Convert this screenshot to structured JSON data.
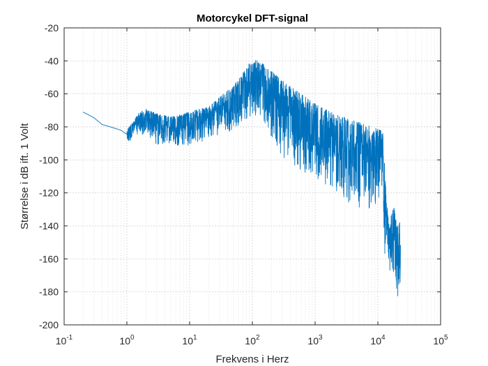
{
  "chart_data": {
    "type": "line",
    "title": "Motorcykel DFT-signal",
    "xlabel": "Frekvens i Herz",
    "ylabel": "Størrelse i dB ift. 1 Volt",
    "xscale": "log",
    "xlim": [
      0.1,
      100000
    ],
    "ylim": [
      -200,
      -20
    ],
    "grid": "major and minor (x), major (y)",
    "line_color": "#0072BD",
    "x_tick_labels": [
      {
        "base": "10",
        "exp": "-1"
      },
      {
        "base": "10",
        "exp": "0"
      },
      {
        "base": "10",
        "exp": "1"
      },
      {
        "base": "10",
        "exp": "2"
      },
      {
        "base": "10",
        "exp": "3"
      },
      {
        "base": "10",
        "exp": "4"
      },
      {
        "base": "10",
        "exp": "5"
      }
    ],
    "y_ticks": [
      "-20",
      "-40",
      "-60",
      "-80",
      "-100",
      "-120",
      "-140",
      "-160",
      "-180",
      "-200"
    ],
    "series": [
      {
        "envelope_upper": [
          [
            0.2,
            -70.5
          ],
          [
            0.3,
            -74
          ],
          [
            0.4,
            -78
          ],
          [
            0.6,
            -80
          ],
          [
            0.8,
            -81
          ],
          [
            1.0,
            -82
          ],
          [
            1.2,
            -78
          ],
          [
            1.5,
            -72
          ],
          [
            2,
            -69
          ],
          [
            3,
            -72
          ],
          [
            5,
            -74
          ],
          [
            8,
            -72
          ],
          [
            12,
            -70
          ],
          [
            20,
            -68
          ],
          [
            30,
            -62
          ],
          [
            50,
            -55
          ],
          [
            70,
            -48
          ],
          [
            100,
            -38
          ],
          [
            150,
            -42
          ],
          [
            200,
            -46
          ],
          [
            300,
            -52
          ],
          [
            500,
            -58
          ],
          [
            1000,
            -66
          ],
          [
            2000,
            -72
          ],
          [
            4000,
            -76
          ],
          [
            8000,
            -80
          ],
          [
            11000,
            -82
          ],
          [
            12000,
            -84
          ],
          [
            14000,
            -128
          ],
          [
            17000,
            -132
          ],
          [
            18000,
            -128
          ],
          [
            20000,
            -138
          ],
          [
            23000,
            -138
          ]
        ],
        "envelope_lower": [
          [
            0.2,
            -71.5
          ],
          [
            0.3,
            -75
          ],
          [
            0.4,
            -79
          ],
          [
            0.6,
            -81
          ],
          [
            0.8,
            -83
          ],
          [
            1.0,
            -87
          ],
          [
            1.15,
            -90
          ],
          [
            1.3,
            -84
          ],
          [
            1.5,
            -86
          ],
          [
            2,
            -84
          ],
          [
            3,
            -91
          ],
          [
            5,
            -90
          ],
          [
            8,
            -92
          ],
          [
            12,
            -90
          ],
          [
            20,
            -88
          ],
          [
            30,
            -86
          ],
          [
            50,
            -84
          ],
          [
            70,
            -80
          ],
          [
            100,
            -72
          ],
          [
            150,
            -76
          ],
          [
            200,
            -86
          ],
          [
            300,
            -98
          ],
          [
            500,
            -104
          ],
          [
            1000,
            -112
          ],
          [
            2000,
            -118
          ],
          [
            4000,
            -128
          ],
          [
            8000,
            -130
          ],
          [
            11000,
            -122
          ],
          [
            12000,
            -124
          ],
          [
            13000,
            -165
          ],
          [
            14000,
            -150
          ],
          [
            16000,
            -176
          ],
          [
            18000,
            -180
          ],
          [
            20000,
            -195
          ],
          [
            23000,
            -178
          ]
        ]
      }
    ]
  }
}
